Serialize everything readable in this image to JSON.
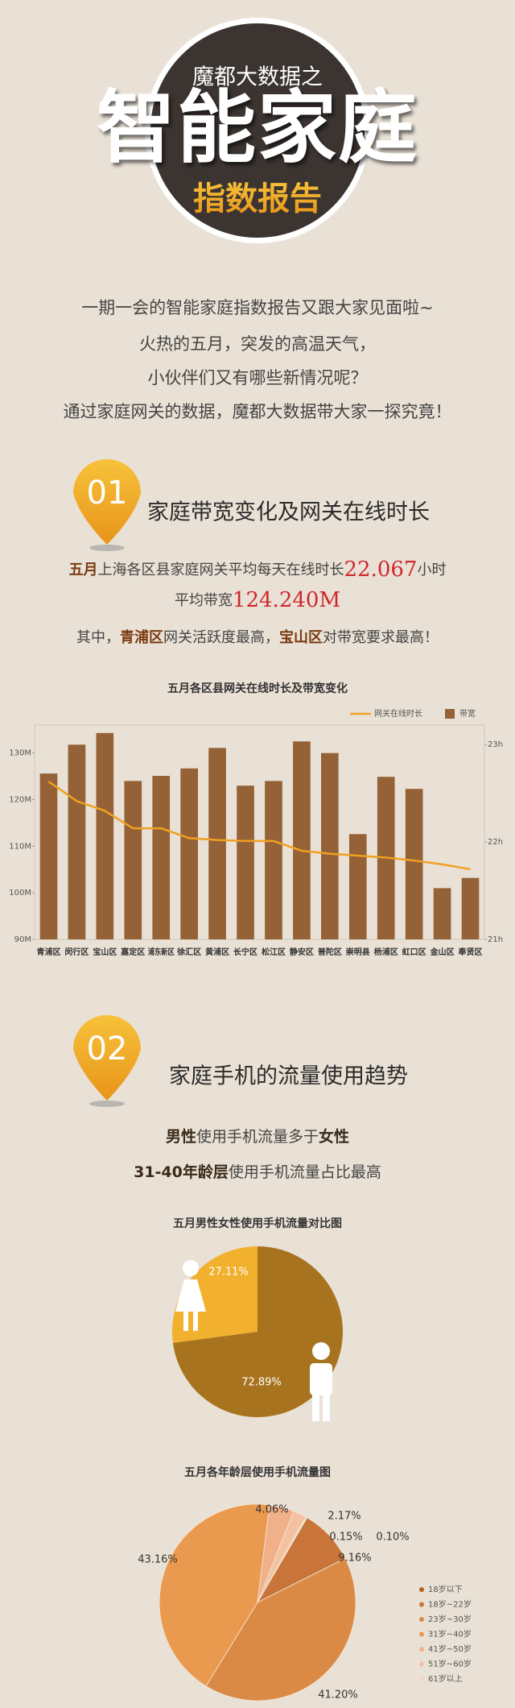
{
  "header": {
    "subtitle": "魔都大数据之",
    "title": "智能家庭",
    "tag": "指数报告"
  },
  "intro": [
    "一期一会的智能家庭指数报告又跟大家见面啦~",
    "火热的五月，突发的高温天气，",
    "小伙伴们又有哪些新情况呢？",
    "通过家庭网关的数据，魔都大数据带大家一探究竟！"
  ],
  "section1": {
    "number": "01",
    "title": "家庭带宽变化及网关在线时长",
    "line1": [
      "五月",
      "上海各区县家庭网关平均每天在线时长",
      "22.067",
      "小时"
    ],
    "line2": [
      "平均带宽",
      "124.240M"
    ],
    "line3": [
      "其中，",
      "青浦区",
      "网关活跃度最高，",
      "宝山区",
      "对带宽要求最高！"
    ]
  },
  "section2": {
    "number": "02",
    "title": "家庭手机的流量使用趋势",
    "line1": [
      "男性",
      "使用手机流量多于",
      "女性"
    ],
    "line2": [
      "31-40年龄层",
      "使用手机流量占比最高"
    ]
  },
  "chart_data": [
    {
      "type": "bar",
      "title": "五月各区县网关在线时长及带宽变化",
      "categories": [
        "青浦区",
        "闵行区",
        "宝山区",
        "嘉定区",
        "浦东新区",
        "徐汇区",
        "黄浦区",
        "长宁区",
        "松江区",
        "静安区",
        "普陀区",
        "崇明县",
        "杨浦区",
        "虹口区",
        "金山区",
        "奉贤区"
      ],
      "series": [
        {
          "name": "网关在线时长",
          "type": "line",
          "axis": "y2",
          "color": "#f0a020",
          "values": [
            22.62,
            22.42,
            22.32,
            22.14,
            22.14,
            22.04,
            22.02,
            22.01,
            22.01,
            21.91,
            21.88,
            21.86,
            21.84,
            21.81,
            21.77,
            21.72
          ]
        },
        {
          "name": "带宽",
          "type": "bar",
          "color": "#946236",
          "values": [
            125.6,
            131.8,
            134.3,
            124,
            125.1,
            126.7,
            131.1,
            123,
            124,
            132.5,
            130,
            112.6,
            124.9,
            122.3,
            101,
            103.2
          ]
        }
      ],
      "ylim": [
        90,
        136
      ],
      "yticks": [
        {
          "value": 90,
          "label": "90M"
        },
        {
          "value": 100,
          "label": "100M"
        },
        {
          "value": 110,
          "label": "110M"
        },
        {
          "value": 120,
          "label": "120M"
        },
        {
          "value": 130,
          "label": "130M"
        }
      ],
      "y2lim": [
        21,
        23.2
      ],
      "y2ticks": [
        {
          "value": 21,
          "label": "21h"
        },
        {
          "value": 22,
          "label": "22h"
        },
        {
          "value": 23,
          "label": "23h"
        }
      ],
      "legend": "top-right"
    },
    {
      "type": "pie",
      "title": "五月男性女性使用手机流量对比图",
      "categories": [
        "女性",
        "男性"
      ],
      "values": [
        27.11,
        72.89
      ],
      "value_labels": [
        "27.11%",
        "72.89%"
      ],
      "colors": [
        "#f1b02e",
        "#a8731f"
      ]
    },
    {
      "type": "pie",
      "title": "五月各年龄层使用手机流量图",
      "categories": [
        "18岁以下",
        "18岁~22岁",
        "23岁~30岁",
        "31岁~40岁",
        "41岁~50岁",
        "51岁~60岁",
        "61岁以上"
      ],
      "values": [
        0.1,
        9.16,
        41.2,
        43.16,
        4.06,
        2.17,
        0.15
      ],
      "value_labels": [
        "0.10%",
        "9.16%",
        "41.20%",
        "43.16%",
        "4.06%",
        "2.17%",
        "0.15%"
      ],
      "colors": [
        "#b8621c",
        "#c9753a",
        "#db8a45",
        "#ea9a4e",
        "#f0b08a",
        "#f4c2a0",
        "#f7d6bf"
      ],
      "legend": "bottom-right"
    }
  ]
}
